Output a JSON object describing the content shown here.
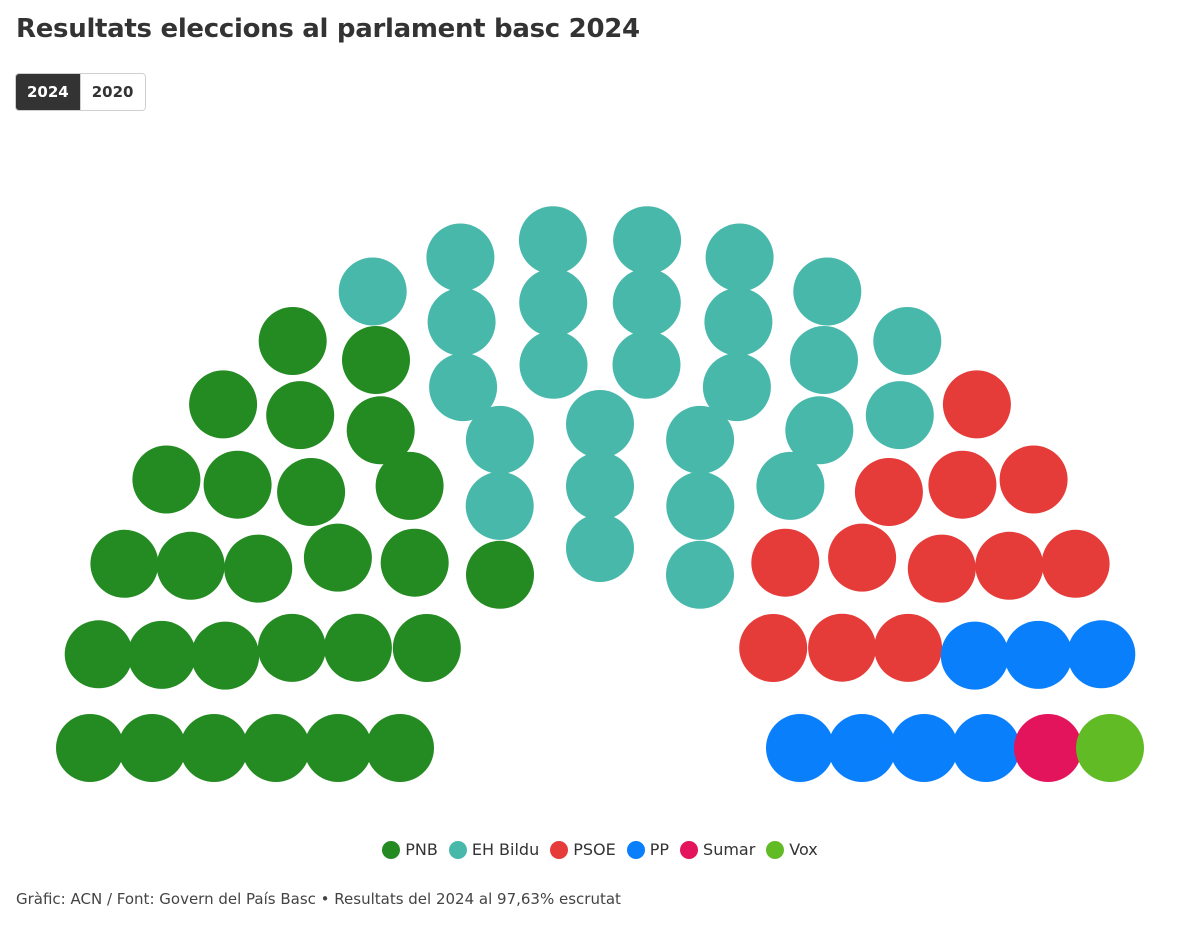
{
  "title": "Resultats eleccions al parlament basc 2024",
  "tabs": [
    {
      "label": "2024",
      "active": true
    },
    {
      "label": "2020",
      "active": false
    }
  ],
  "chart_data": {
    "type": "parliament",
    "total_seats": 75,
    "series": [
      {
        "name": "PNB",
        "seats": 27,
        "color": "#248a22"
      },
      {
        "name": "EH Bildu",
        "seats": 27,
        "color": "#48b8ab"
      },
      {
        "name": "PSOE",
        "seats": 12,
        "color": "#e53c3a"
      },
      {
        "name": "PP",
        "seats": 7,
        "color": "#0a7ffc"
      },
      {
        "name": "Sumar",
        "seats": 1,
        "color": "#e3145c"
      },
      {
        "name": "Vox",
        "seats": 1,
        "color": "#61bb25"
      }
    ]
  },
  "legend": [
    {
      "label": "PNB",
      "color": "#248a22"
    },
    {
      "label": "EH Bildu",
      "color": "#48b8ab"
    },
    {
      "label": "PSOE",
      "color": "#e53c3a"
    },
    {
      "label": "PP",
      "color": "#0a7ffc"
    },
    {
      "label": "Sumar",
      "color": "#e3145c"
    },
    {
      "label": "Vox",
      "color": "#61bb25"
    }
  ],
  "footer": "Gràfic: ACN / Font: Govern del País Basc • Resultats del 2024 al 97,63% escrutat"
}
